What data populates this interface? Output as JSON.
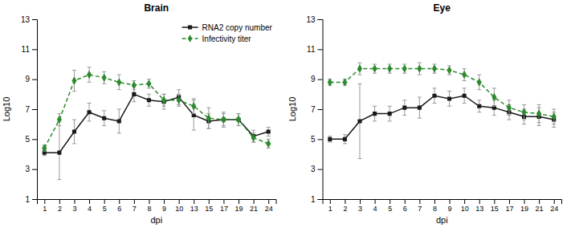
{
  "chart_data": [
    {
      "type": "line",
      "title": "Brain",
      "x_label": "dpi",
      "y_label": "Log10",
      "categories": [
        1,
        2,
        3,
        4,
        5,
        6,
        7,
        8,
        9,
        10,
        13,
        15,
        17,
        19,
        21,
        24
      ],
      "series": [
        {
          "name": "RNA2 copy number",
          "color": "#1a1a1a",
          "marker": "square",
          "line_style": "solid",
          "values": [
            4.1,
            4.1,
            5.5,
            6.8,
            6.4,
            6.2,
            8.0,
            7.6,
            7.5,
            7.8,
            6.6,
            6.2,
            6.3,
            6.3,
            5.2,
            5.5
          ],
          "errors": [
            0.2,
            1.8,
            0.8,
            0.6,
            0.5,
            0.8,
            0.5,
            0.4,
            0.5,
            0.5,
            1.0,
            0.5,
            0.4,
            0.4,
            0.4,
            0.3
          ]
        },
        {
          "name": "Infectivity titer",
          "color": "#2d8a2d",
          "marker": "diamond",
          "line_style": "dashed",
          "values": [
            4.4,
            6.3,
            8.9,
            9.3,
            9.1,
            8.8,
            8.6,
            8.7,
            7.6,
            7.6,
            7.2,
            6.4,
            6.3,
            6.3,
            5.1,
            4.7
          ],
          "errors": [
            0.2,
            0.4,
            0.7,
            0.5,
            0.4,
            0.5,
            0.3,
            0.3,
            0.4,
            0.4,
            0.5,
            0.7,
            0.5,
            0.4,
            0.3,
            0.3
          ]
        }
      ],
      "ylim": [
        1,
        13
      ],
      "yticks": [
        1,
        3,
        5,
        7,
        9,
        11,
        13
      ],
      "grid": false,
      "legend": "upper right"
    },
    {
      "type": "line",
      "title": "Eye",
      "x_label": "dpi",
      "y_label": "Log10",
      "categories": [
        1,
        2,
        3,
        4,
        5,
        6,
        7,
        8,
        9,
        10,
        13,
        15,
        17,
        19,
        21,
        24
      ],
      "series": [
        {
          "color": "#1a1a1a",
          "marker": "square",
          "line_style": "solid",
          "values": [
            5.0,
            5.0,
            6.2,
            6.7,
            6.7,
            7.1,
            7.1,
            7.9,
            7.7,
            7.9,
            7.2,
            7.1,
            6.8,
            6.5,
            6.5,
            6.3
          ],
          "errors": [
            0.2,
            0.3,
            2.5,
            0.5,
            0.5,
            0.5,
            0.7,
            0.5,
            0.5,
            0.5,
            0.4,
            0.5,
            0.5,
            0.5,
            0.6,
            0.5
          ]
        },
        {
          "color": "#2d8a2d",
          "marker": "diamond",
          "line_style": "dashed",
          "values": [
            8.8,
            8.8,
            9.7,
            9.7,
            9.7,
            9.7,
            9.7,
            9.7,
            9.6,
            9.3,
            8.8,
            7.8,
            7.1,
            6.8,
            6.7,
            6.5
          ],
          "errors": [
            0.2,
            0.2,
            0.4,
            0.3,
            0.3,
            0.3,
            0.4,
            0.3,
            0.3,
            0.4,
            0.5,
            0.6,
            0.5,
            0.5,
            0.6,
            0.5
          ]
        }
      ],
      "ylim": [
        1,
        13
      ],
      "yticks": [
        1,
        3,
        5,
        7,
        9,
        11,
        13
      ],
      "grid": false
    }
  ]
}
